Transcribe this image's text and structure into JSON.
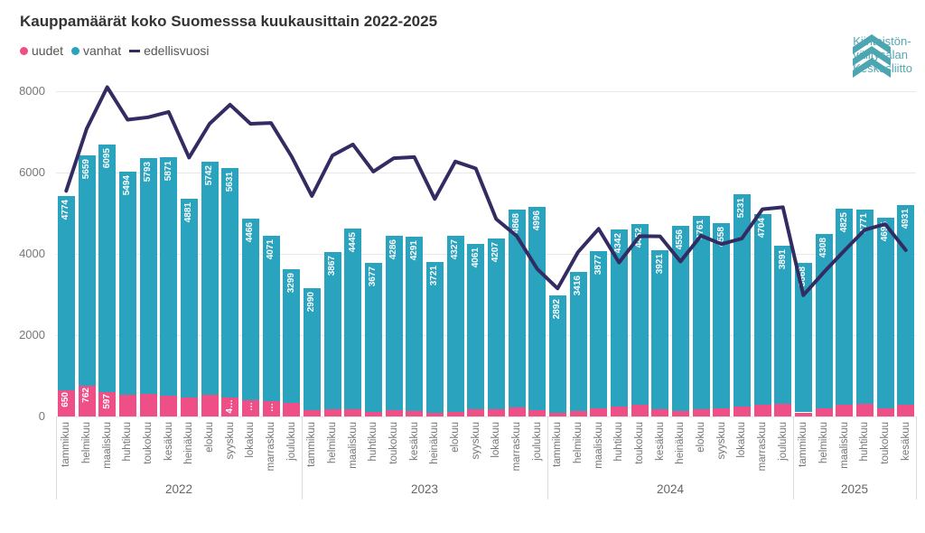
{
  "title": "Kauppamäärät koko Suomesssa kuukausittain 2022-2025",
  "legend": {
    "items": [
      {
        "label": "uudet",
        "marker": "dot",
        "color": "#ee4f87"
      },
      {
        "label": "vanhat",
        "marker": "dot",
        "color": "#2aa3be"
      },
      {
        "label": "edellisvuosi",
        "marker": "dash",
        "color": "#332c63"
      }
    ]
  },
  "logo": {
    "lines": [
      "Kiinteistön-",
      "välitysalan",
      "Keskusliitto"
    ],
    "color": "#4ba6b2"
  },
  "chart_data": {
    "type": "bar",
    "subtype": "stacked-bars-with-line",
    "title": "Kauppamäärät koko Suomesssa kuukausittain 2022-2025",
    "ylim": [
      0,
      8000
    ],
    "yticks": [
      0,
      2000,
      4000,
      6000,
      8000
    ],
    "grid": true,
    "legend_position": "top-left",
    "colors": {
      "uudet": "#ee4f87",
      "vanhat": "#2aa3be",
      "edellisvuosi": "#332c63"
    },
    "series_note": "uudet+vanhat are stacked monthly bars; edellisvuosi line = previous year's monthly total; unlabeled uudet values and 2022 line values estimated from pixels",
    "years": [
      {
        "label": "2022",
        "months": [
          "tammikuu",
          "helmikuu",
          "maaliskuu",
          "huhtikuu",
          "toukokuu",
          "kesäkuu",
          "heinäkuu",
          "elokuu",
          "syyskuu",
          "lokakuu",
          "marraskuu",
          "joulukuu"
        ],
        "vanhat": [
          4774,
          5659,
          6095,
          5494,
          5793,
          5871,
          4881,
          5742,
          5631,
          4466,
          4071,
          3299
        ],
        "uudet": [
          650,
          762,
          597,
          530,
          560,
          510,
          470,
          530,
          470,
          390,
          370,
          330
        ],
        "uudet_labels": [
          "650",
          "762",
          "597",
          "",
          "",
          "",
          "",
          "",
          "4…",
          "…",
          "…",
          ""
        ],
        "edellisvuosi": [
          5550,
          7080,
          8100,
          7300,
          7360,
          7490,
          6370,
          7200,
          7670,
          7200,
          7220,
          6400
        ]
      },
      {
        "label": "2023",
        "months": [
          "tammikuu",
          "helmikuu",
          "maaliskuu",
          "huhtikuu",
          "toukokuu",
          "kesäkuu",
          "heinäkuu",
          "elokuu",
          "syyskuu",
          "lokakuu",
          "marraskuu",
          "joulukuu"
        ],
        "vanhat": [
          2990,
          3867,
          4445,
          3677,
          4286,
          4291,
          3721,
          4327,
          4061,
          4207,
          4868,
          4996
        ],
        "uudet": [
          160,
          180,
          170,
          110,
          150,
          140,
          90,
          120,
          180,
          170,
          230,
          150
        ],
        "uudet_labels": [
          "",
          "",
          "",
          "",
          "",
          "",
          "",
          "",
          "",
          "",
          "",
          ""
        ],
        "edellisvuosi": [
          5424,
          6421,
          6692,
          6024,
          6353,
          6381,
          5351,
          6272,
          6101,
          4856,
          4441,
          3629
        ]
      },
      {
        "label": "2024",
        "months": [
          "tammikuu",
          "helmikuu",
          "maaliskuu",
          "huhtikuu",
          "toukokuu",
          "kesäkuu",
          "heinäkuu",
          "elokuu",
          "syyskuu",
          "lokakuu",
          "marraskuu",
          "joulukuu"
        ],
        "vanhat": [
          2892,
          3416,
          3877,
          4342,
          4452,
          3921,
          4556,
          4761,
          4558,
          5231,
          4704,
          3891
        ],
        "uudet": [
          90,
          130,
          200,
          250,
          280,
          170,
          130,
          170,
          200,
          245,
          280,
          320
        ],
        "uudet_labels": [
          "",
          "",
          "",
          "",
          "",
          "",
          "",
          "",
          "",
          "",
          "",
          ""
        ],
        "edellisvuosi": [
          3150,
          4047,
          4615,
          3787,
          4436,
          4431,
          3811,
          4447,
          4241,
          4377,
          5098,
          5146
        ]
      },
      {
        "label": "2025",
        "months": [
          "tammikuu",
          "helmikuu",
          "maaliskuu",
          "huhtikuu",
          "toukokuu",
          "kesäkuu"
        ],
        "vanhat": [
          3668,
          4308,
          4825,
          4771,
          4695,
          4931
        ],
        "uudet": [
          100,
          190,
          280,
          320,
          190,
          280
        ],
        "uudet_labels": [
          "",
          "",
          "",
          "",
          "",
          ""
        ],
        "edellisvuosi": [
          2982,
          3546,
          4077,
          4592,
          4732,
          4091
        ]
      }
    ]
  }
}
